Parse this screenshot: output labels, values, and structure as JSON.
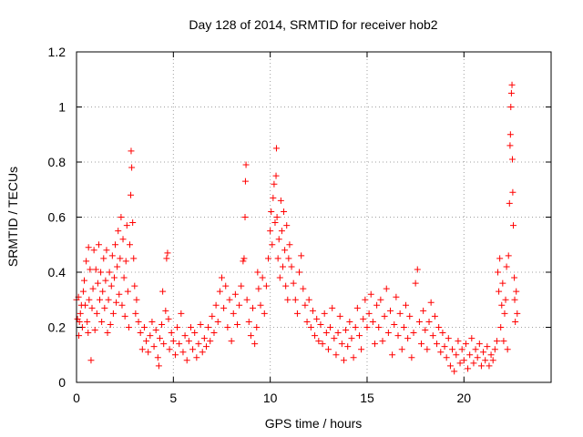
{
  "chart_data": {
    "type": "scatter",
    "title": "Day 128 of 2014, SRMTID for receiver hob2",
    "xlabel": "GPS time / hours",
    "ylabel": "SRMTID / TECUs",
    "xlim": [
      0,
      24.5
    ],
    "ylim": [
      0,
      1.2
    ],
    "x_ticks": [
      0,
      5,
      10,
      15,
      20
    ],
    "x_tick_labels": [
      "0",
      "5",
      "10",
      "15",
      "20"
    ],
    "y_ticks": [
      0,
      0.2,
      0.4,
      0.6,
      0.8,
      1.0,
      1.2
    ],
    "y_tick_labels": [
      "0",
      "0.2",
      "0.4",
      "0.6",
      "0.8",
      "1",
      "1.2"
    ],
    "grid": true,
    "marker": "plus",
    "color": "#ff0000",
    "series": [
      {
        "name": "hob2",
        "points": [
          [
            0.0,
            0.3
          ],
          [
            0.05,
            0.23
          ],
          [
            0.1,
            0.31
          ],
          [
            0.12,
            0.17
          ],
          [
            0.15,
            0.22
          ],
          [
            0.2,
            0.25
          ],
          [
            0.25,
            0.28
          ],
          [
            0.3,
            0.2
          ],
          [
            0.35,
            0.33
          ],
          [
            0.4,
            0.37
          ],
          [
            0.45,
            0.28
          ],
          [
            0.5,
            0.44
          ],
          [
            0.55,
            0.22
          ],
          [
            0.6,
            0.18
          ],
          [
            0.62,
            0.49
          ],
          [
            0.65,
            0.3
          ],
          [
            0.7,
            0.41
          ],
          [
            0.75,
            0.08
          ],
          [
            0.8,
            0.27
          ],
          [
            0.85,
            0.34
          ],
          [
            0.9,
            0.48
          ],
          [
            0.95,
            0.19
          ],
          [
            1.0,
            0.41
          ],
          [
            1.05,
            0.25
          ],
          [
            1.1,
            0.36
          ],
          [
            1.15,
            0.5
          ],
          [
            1.2,
            0.3
          ],
          [
            1.25,
            0.4
          ],
          [
            1.3,
            0.22
          ],
          [
            1.35,
            0.33
          ],
          [
            1.4,
            0.45
          ],
          [
            1.45,
            0.27
          ],
          [
            1.5,
            0.37
          ],
          [
            1.55,
            0.48
          ],
          [
            1.6,
            0.18
          ],
          [
            1.65,
            0.3
          ],
          [
            1.7,
            0.4
          ],
          [
            1.75,
            0.21
          ],
          [
            1.8,
            0.35
          ],
          [
            1.85,
            0.46
          ],
          [
            1.9,
            0.25
          ],
          [
            1.95,
            0.38
          ],
          [
            2.0,
            0.5
          ],
          [
            2.05,
            0.29
          ],
          [
            2.1,
            0.42
          ],
          [
            2.15,
            0.55
          ],
          [
            2.2,
            0.32
          ],
          [
            2.25,
            0.45
          ],
          [
            2.3,
            0.6
          ],
          [
            2.35,
            0.28
          ],
          [
            2.4,
            0.52
          ],
          [
            2.45,
            0.38
          ],
          [
            2.5,
            0.24
          ],
          [
            2.55,
            0.44
          ],
          [
            2.6,
            0.57
          ],
          [
            2.65,
            0.33
          ],
          [
            2.7,
            0.2
          ],
          [
            2.75,
            0.5
          ],
          [
            2.8,
            0.68
          ],
          [
            2.82,
            0.84
          ],
          [
            2.85,
            0.78
          ],
          [
            2.9,
            0.58
          ],
          [
            2.95,
            0.45
          ],
          [
            3.0,
            0.35
          ],
          [
            3.05,
            0.25
          ],
          [
            3.1,
            0.3
          ],
          [
            3.2,
            0.22
          ],
          [
            3.3,
            0.18
          ],
          [
            3.4,
            0.12
          ],
          [
            3.5,
            0.2
          ],
          [
            3.6,
            0.15
          ],
          [
            3.7,
            0.11
          ],
          [
            3.8,
            0.17
          ],
          [
            3.9,
            0.22
          ],
          [
            4.0,
            0.13
          ],
          [
            4.1,
            0.19
          ],
          [
            4.2,
            0.09
          ],
          [
            4.25,
            0.06
          ],
          [
            4.3,
            0.16
          ],
          [
            4.4,
            0.21
          ],
          [
            4.45,
            0.33
          ],
          [
            4.5,
            0.14
          ],
          [
            4.6,
            0.26
          ],
          [
            4.65,
            0.45
          ],
          [
            4.7,
            0.47
          ],
          [
            4.75,
            0.23
          ],
          [
            4.8,
            0.12
          ],
          [
            4.9,
            0.18
          ],
          [
            5.0,
            0.15
          ],
          [
            5.1,
            0.1
          ],
          [
            5.2,
            0.2
          ],
          [
            5.3,
            0.14
          ],
          [
            5.4,
            0.25
          ],
          [
            5.5,
            0.11
          ],
          [
            5.6,
            0.17
          ],
          [
            5.7,
            0.08
          ],
          [
            5.8,
            0.15
          ],
          [
            5.9,
            0.2
          ],
          [
            6.0,
            0.12
          ],
          [
            6.1,
            0.18
          ],
          [
            6.2,
            0.09
          ],
          [
            6.3,
            0.14
          ],
          [
            6.4,
            0.21
          ],
          [
            6.5,
            0.11
          ],
          [
            6.6,
            0.16
          ],
          [
            6.7,
            0.13
          ],
          [
            6.8,
            0.2
          ],
          [
            6.9,
            0.15
          ],
          [
            7.0,
            0.24
          ],
          [
            7.1,
            0.18
          ],
          [
            7.2,
            0.28
          ],
          [
            7.3,
            0.22
          ],
          [
            7.4,
            0.33
          ],
          [
            7.5,
            0.38
          ],
          [
            7.6,
            0.27
          ],
          [
            7.7,
            0.35
          ],
          [
            7.8,
            0.2
          ],
          [
            7.9,
            0.3
          ],
          [
            8.0,
            0.15
          ],
          [
            8.1,
            0.25
          ],
          [
            8.2,
            0.32
          ],
          [
            8.3,
            0.21
          ],
          [
            8.4,
            0.28
          ],
          [
            8.5,
            0.35
          ],
          [
            8.6,
            0.44
          ],
          [
            8.65,
            0.45
          ],
          [
            8.7,
            0.6
          ],
          [
            8.72,
            0.73
          ],
          [
            8.75,
            0.79
          ],
          [
            8.8,
            0.3
          ],
          [
            8.9,
            0.22
          ],
          [
            9.0,
            0.17
          ],
          [
            9.1,
            0.27
          ],
          [
            9.2,
            0.14
          ],
          [
            9.3,
            0.2
          ],
          [
            9.35,
            0.4
          ],
          [
            9.4,
            0.34
          ],
          [
            9.5,
            0.28
          ],
          [
            9.6,
            0.38
          ],
          [
            9.7,
            0.25
          ],
          [
            9.8,
            0.35
          ],
          [
            9.9,
            0.45
          ],
          [
            10.0,
            0.55
          ],
          [
            10.05,
            0.62
          ],
          [
            10.1,
            0.5
          ],
          [
            10.15,
            0.67
          ],
          [
            10.2,
            0.72
          ],
          [
            10.25,
            0.58
          ],
          [
            10.3,
            0.75
          ],
          [
            10.32,
            0.85
          ],
          [
            10.35,
            0.6
          ],
          [
            10.4,
            0.45
          ],
          [
            10.45,
            0.52
          ],
          [
            10.5,
            0.38
          ],
          [
            10.55,
            0.66
          ],
          [
            10.6,
            0.55
          ],
          [
            10.65,
            0.42
          ],
          [
            10.7,
            0.62
          ],
          [
            10.75,
            0.48
          ],
          [
            10.8,
            0.35
          ],
          [
            10.85,
            0.57
          ],
          [
            10.9,
            0.3
          ],
          [
            10.95,
            0.45
          ],
          [
            11.0,
            0.5
          ],
          [
            11.1,
            0.42
          ],
          [
            11.2,
            0.36
          ],
          [
            11.3,
            0.3
          ],
          [
            11.4,
            0.25
          ],
          [
            11.5,
            0.4
          ],
          [
            11.6,
            0.46
          ],
          [
            11.7,
            0.34
          ],
          [
            11.8,
            0.28
          ],
          [
            11.9,
            0.22
          ],
          [
            12.0,
            0.3
          ],
          [
            12.1,
            0.2
          ],
          [
            12.2,
            0.26
          ],
          [
            12.3,
            0.17
          ],
          [
            12.4,
            0.23
          ],
          [
            12.5,
            0.15
          ],
          [
            12.6,
            0.21
          ],
          [
            12.7,
            0.14
          ],
          [
            12.8,
            0.25
          ],
          [
            12.9,
            0.18
          ],
          [
            13.0,
            0.12
          ],
          [
            13.1,
            0.2
          ],
          [
            13.2,
            0.27
          ],
          [
            13.3,
            0.16
          ],
          [
            13.4,
            0.1
          ],
          [
            13.5,
            0.18
          ],
          [
            13.6,
            0.24
          ],
          [
            13.7,
            0.14
          ],
          [
            13.8,
            0.08
          ],
          [
            13.9,
            0.19
          ],
          [
            14.0,
            0.13
          ],
          [
            14.1,
            0.22
          ],
          [
            14.2,
            0.16
          ],
          [
            14.3,
            0.09
          ],
          [
            14.4,
            0.2
          ],
          [
            14.5,
            0.27
          ],
          [
            14.6,
            0.17
          ],
          [
            14.7,
            0.12
          ],
          [
            14.8,
            0.23
          ],
          [
            14.9,
            0.3
          ],
          [
            15.0,
            0.2
          ],
          [
            15.1,
            0.25
          ],
          [
            15.2,
            0.32
          ],
          [
            15.3,
            0.22
          ],
          [
            15.4,
            0.14
          ],
          [
            15.5,
            0.28
          ],
          [
            15.6,
            0.2
          ],
          [
            15.7,
            0.3
          ],
          [
            15.8,
            0.15
          ],
          [
            15.9,
            0.24
          ],
          [
            16.0,
            0.34
          ],
          [
            16.1,
            0.18
          ],
          [
            16.2,
            0.26
          ],
          [
            16.3,
            0.1
          ],
          [
            16.4,
            0.21
          ],
          [
            16.5,
            0.31
          ],
          [
            16.6,
            0.17
          ],
          [
            16.7,
            0.25
          ],
          [
            16.8,
            0.12
          ],
          [
            16.9,
            0.2
          ],
          [
            17.0,
            0.28
          ],
          [
            17.1,
            0.16
          ],
          [
            17.2,
            0.24
          ],
          [
            17.3,
            0.09
          ],
          [
            17.4,
            0.18
          ],
          [
            17.5,
            0.36
          ],
          [
            17.6,
            0.41
          ],
          [
            17.7,
            0.22
          ],
          [
            17.8,
            0.14
          ],
          [
            17.9,
            0.26
          ],
          [
            18.0,
            0.19
          ],
          [
            18.1,
            0.12
          ],
          [
            18.2,
            0.22
          ],
          [
            18.3,
            0.29
          ],
          [
            18.4,
            0.17
          ],
          [
            18.5,
            0.24
          ],
          [
            18.6,
            0.14
          ],
          [
            18.7,
            0.2
          ],
          [
            18.8,
            0.11
          ],
          [
            18.9,
            0.18
          ],
          [
            19.0,
            0.13
          ],
          [
            19.1,
            0.09
          ],
          [
            19.2,
            0.16
          ],
          [
            19.3,
            0.06
          ],
          [
            19.4,
            0.12
          ],
          [
            19.5,
            0.04
          ],
          [
            19.6,
            0.1
          ],
          [
            19.7,
            0.15
          ],
          [
            19.8,
            0.07
          ],
          [
            19.9,
            0.12
          ],
          [
            20.0,
            0.08
          ],
          [
            20.1,
            0.14
          ],
          [
            20.2,
            0.05
          ],
          [
            20.3,
            0.1
          ],
          [
            20.4,
            0.16
          ],
          [
            20.5,
            0.07
          ],
          [
            20.6,
            0.12
          ],
          [
            20.7,
            0.09
          ],
          [
            20.8,
            0.14
          ],
          [
            20.9,
            0.06
          ],
          [
            21.0,
            0.11
          ],
          [
            21.1,
            0.08
          ],
          [
            21.2,
            0.13
          ],
          [
            21.3,
            0.06
          ],
          [
            21.4,
            0.1
          ],
          [
            21.5,
            0.08
          ],
          [
            21.6,
            0.12
          ],
          [
            21.7,
            0.15
          ],
          [
            21.75,
            0.4
          ],
          [
            21.8,
            0.33
          ],
          [
            21.85,
            0.45
          ],
          [
            21.9,
            0.2
          ],
          [
            21.95,
            0.28
          ],
          [
            22.0,
            0.36
          ],
          [
            22.05,
            0.15
          ],
          [
            22.1,
            0.25
          ],
          [
            22.15,
            0.3
          ],
          [
            22.2,
            0.42
          ],
          [
            22.25,
            0.12
          ],
          [
            22.3,
            0.46
          ],
          [
            22.35,
            0.65
          ],
          [
            22.38,
            0.86
          ],
          [
            22.4,
            0.9
          ],
          [
            22.42,
            1.0
          ],
          [
            22.45,
            1.05
          ],
          [
            22.48,
            1.08
          ],
          [
            22.5,
            0.81
          ],
          [
            22.52,
            0.69
          ],
          [
            22.55,
            0.57
          ],
          [
            22.6,
            0.38
          ],
          [
            22.62,
            0.3
          ],
          [
            22.65,
            0.22
          ],
          [
            22.7,
            0.33
          ],
          [
            22.75,
            0.25
          ]
        ]
      }
    ]
  }
}
